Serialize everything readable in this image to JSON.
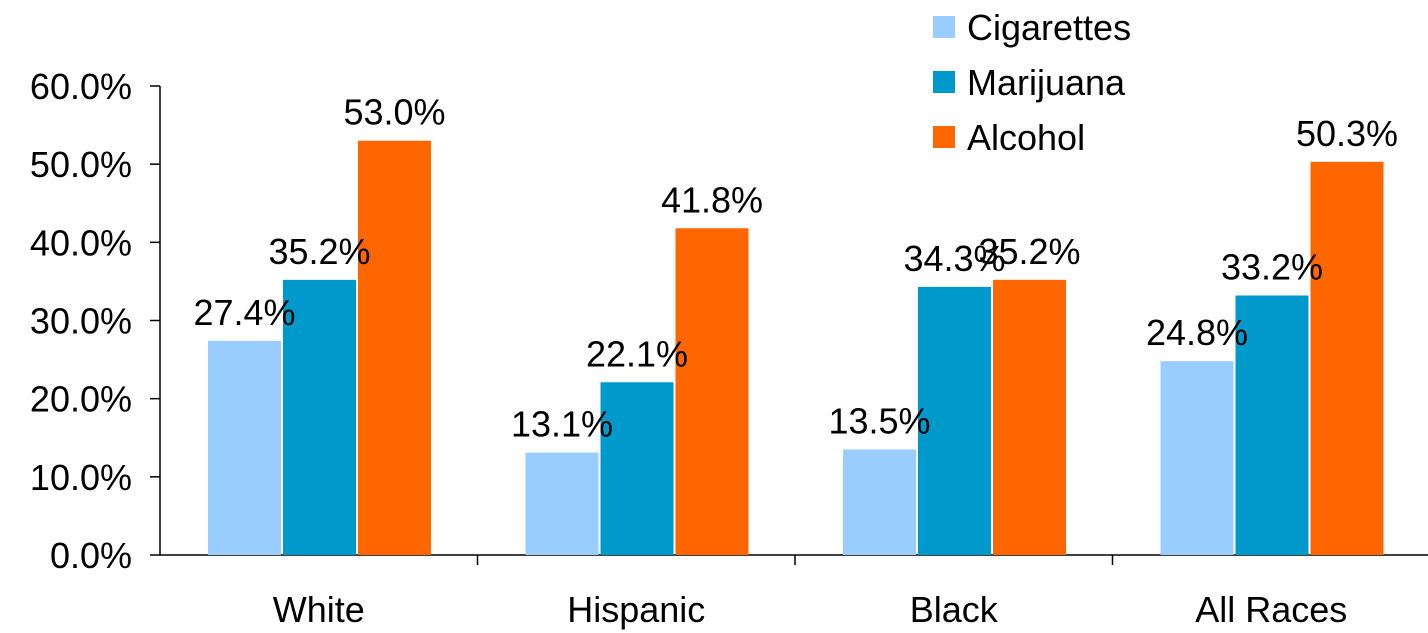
{
  "colors": {
    "cigarettes": "#99CCFF",
    "marijuana": "#0099CC",
    "alcohol": "#FF6600",
    "axis": "#000000"
  },
  "chart_data": {
    "type": "bar",
    "title": "",
    "xlabel": "",
    "ylabel": "",
    "categories": [
      "White",
      "Hispanic",
      "Black",
      "All Races"
    ],
    "series": [
      {
        "name": "Cigarettes",
        "values": [
          27.4,
          13.1,
          13.5,
          24.8
        ],
        "labels": [
          "27.4%",
          "13.1%",
          "13.5%",
          "24.8%"
        ]
      },
      {
        "name": "Marijuana",
        "values": [
          35.2,
          22.1,
          34.3,
          33.2
        ],
        "labels": [
          "35.2%",
          "22.1%",
          "34.3%",
          "33.2%"
        ]
      },
      {
        "name": "Alcohol",
        "values": [
          53.0,
          41.8,
          35.2,
          50.3
        ],
        "labels": [
          "53.0%",
          "41.8%",
          "35.2%",
          "50.3%"
        ]
      }
    ],
    "ylim": [
      0,
      60
    ],
    "yticks": [
      0,
      10,
      20,
      30,
      40,
      50,
      60
    ],
    "ytick_labels": [
      "0.0%",
      "10.0%",
      "20.0%",
      "30.0%",
      "40.0%",
      "50.0%",
      "60.0%"
    ],
    "grid": false,
    "legend": "top-right"
  }
}
